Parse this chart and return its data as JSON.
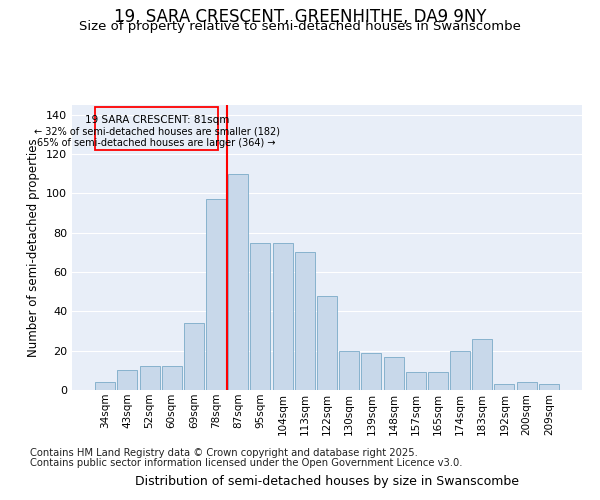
{
  "title": "19, SARA CRESCENT, GREENHITHE, DA9 9NY",
  "subtitle": "Size of property relative to semi-detached houses in Swanscombe",
  "xlabel": "Distribution of semi-detached houses by size in Swanscombe",
  "ylabel": "Number of semi-detached properties",
  "bar_color": "#c8d8ea",
  "bar_edge_color": "#7aaac8",
  "bg_color": "#e8eef8",
  "grid_color": "#ffffff",
  "categories": [
    "34sqm",
    "43sqm",
    "52sqm",
    "60sqm",
    "69sqm",
    "78sqm",
    "87sqm",
    "95sqm",
    "104sqm",
    "113sqm",
    "122sqm",
    "130sqm",
    "139sqm",
    "148sqm",
    "157sqm",
    "165sqm",
    "174sqm",
    "183sqm",
    "192sqm",
    "200sqm",
    "209sqm"
  ],
  "values": [
    4,
    10,
    12,
    12,
    34,
    97,
    110,
    75,
    75,
    70,
    48,
    20,
    19,
    17,
    9,
    9,
    20,
    26,
    3,
    4,
    3
  ],
  "vline_color": "red",
  "annotation_title": "19 SARA CRESCENT: 81sqm",
  "annotation_line1": "← 32% of semi-detached houses are smaller (182)",
  "annotation_line2": "65% of semi-detached houses are larger (364) →",
  "footer1": "Contains HM Land Registry data © Crown copyright and database right 2025.",
  "footer2": "Contains public sector information licensed under the Open Government Licence v3.0.",
  "ylim": [
    0,
    145
  ],
  "yticks": [
    0,
    20,
    40,
    60,
    80,
    100,
    120,
    140
  ]
}
